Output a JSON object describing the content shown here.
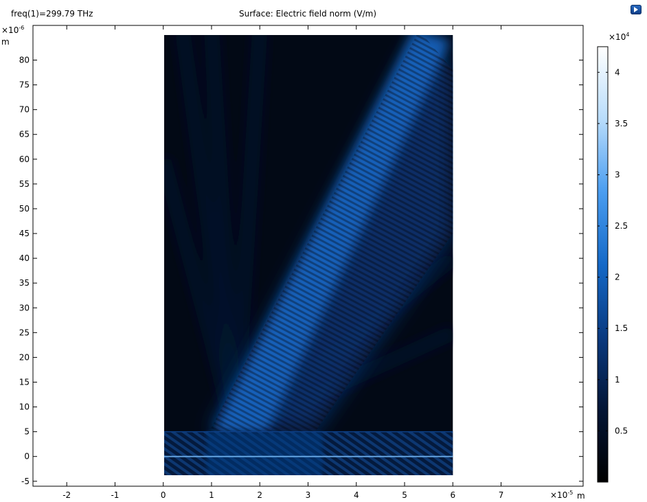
{
  "header": {
    "freq_label": "freq(1)=299.79 THz",
    "title": "Surface: Electric field norm (V/m)"
  },
  "icons": {
    "app_logo": "comsol-logo-icon"
  },
  "plot": {
    "y_axis": {
      "exponent": "×10",
      "exponent_power": "-6",
      "unit": "m",
      "range": [
        -6,
        87
      ],
      "ticks": [
        -5,
        0,
        5,
        10,
        15,
        20,
        25,
        30,
        35,
        40,
        45,
        50,
        55,
        60,
        65,
        70,
        75,
        80
      ]
    },
    "x_axis": {
      "exponent": "×10",
      "exponent_power": "-5",
      "unit": "m",
      "range": [
        -2.7,
        8.7
      ],
      "ticks": [
        -2,
        -1,
        0,
        1,
        2,
        3,
        4,
        5,
        6,
        7
      ]
    },
    "domain": {
      "x_range": [
        0,
        6
      ],
      "y_range": [
        -5,
        86
      ]
    },
    "colormap": [
      "#000000",
      "#031535",
      "#0a3a80",
      "#1569c7",
      "#4a9df0",
      "#b8dcfb",
      "#ffffff"
    ]
  },
  "colorbar": {
    "exponent": "×10",
    "exponent_power": "4",
    "range": [
      0,
      4.25
    ],
    "ticks": [
      "0.5",
      "1",
      "1.5",
      "2",
      "2.5",
      "3",
      "3.5",
      "4"
    ]
  }
}
